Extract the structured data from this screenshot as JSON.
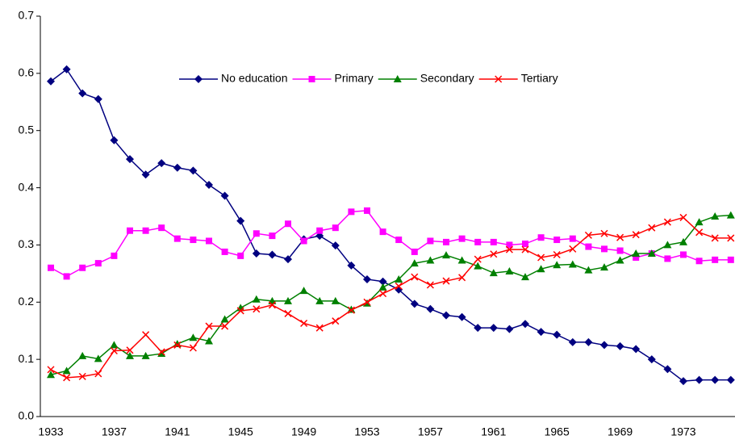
{
  "chart_data": {
    "type": "line",
    "categories": [
      "1933",
      null,
      null,
      null,
      "1937",
      null,
      null,
      null,
      "1941",
      null,
      null,
      null,
      "1945",
      null,
      null,
      null,
      "1949",
      null,
      null,
      null,
      "1953",
      null,
      null,
      null,
      "1957",
      null,
      null,
      null,
      "1961",
      null,
      null,
      null,
      "1965",
      null,
      null,
      null,
      "1969",
      null,
      null,
      null,
      "1973",
      null,
      null,
      null
    ],
    "series": [
      {
        "name": "No education",
        "color": "#000080",
        "marker": "diamond",
        "values": [
          0.586,
          0.607,
          0.565,
          0.555,
          0.483,
          0.45,
          0.423,
          0.443,
          0.435,
          0.43,
          0.405,
          0.386,
          0.342,
          0.285,
          0.283,
          0.275,
          0.31,
          0.316,
          0.299,
          0.264,
          0.24,
          0.236,
          0.222,
          0.197,
          0.188,
          0.177,
          0.174,
          0.155,
          0.155,
          0.153,
          0.162,
          0.148,
          0.143,
          0.13,
          0.13,
          0.125,
          0.123,
          0.118,
          0.1,
          0.083,
          0.062,
          0.064,
          0.064,
          0.064
        ]
      },
      {
        "name": "Primary",
        "color": "#ff00ff",
        "marker": "square",
        "values": [
          0.26,
          0.245,
          0.26,
          0.268,
          0.281,
          0.325,
          0.325,
          0.33,
          0.311,
          0.309,
          0.307,
          0.288,
          0.281,
          0.32,
          0.316,
          0.337,
          0.307,
          0.325,
          0.33,
          0.358,
          0.36,
          0.323,
          0.309,
          0.288,
          0.307,
          0.305,
          0.311,
          0.305,
          0.305,
          0.3,
          0.302,
          0.313,
          0.309,
          0.311,
          0.297,
          0.293,
          0.29,
          0.278,
          0.285,
          0.276,
          0.283,
          0.272,
          0.274,
          0.274
        ]
      },
      {
        "name": "Secondary",
        "color": "#008000",
        "marker": "triangle",
        "values": [
          0.073,
          0.08,
          0.106,
          0.101,
          0.125,
          0.106,
          0.106,
          0.11,
          0.127,
          0.138,
          0.132,
          0.17,
          0.19,
          0.205,
          0.202,
          0.202,
          0.22,
          0.202,
          0.202,
          0.187,
          0.198,
          0.226,
          0.24,
          0.268,
          0.273,
          0.282,
          0.273,
          0.263,
          0.251,
          0.254,
          0.244,
          0.258,
          0.265,
          0.266,
          0.256,
          0.261,
          0.273,
          0.285,
          0.285,
          0.3,
          0.305,
          0.34,
          0.35,
          0.352
        ]
      },
      {
        "name": "Tertiary",
        "color": "#ff0000",
        "marker": "x",
        "values": [
          0.082,
          0.068,
          0.07,
          0.075,
          0.115,
          0.116,
          0.143,
          0.113,
          0.125,
          0.12,
          0.158,
          0.158,
          0.185,
          0.188,
          0.195,
          0.18,
          0.163,
          0.155,
          0.167,
          0.186,
          0.2,
          0.215,
          0.228,
          0.244,
          0.23,
          0.237,
          0.243,
          0.275,
          0.284,
          0.292,
          0.292,
          0.278,
          0.283,
          0.293,
          0.317,
          0.32,
          0.313,
          0.318,
          0.33,
          0.34,
          0.348,
          0.322,
          0.312,
          0.312
        ]
      }
    ],
    "ylim": [
      0,
      0.7
    ],
    "yticks": [
      {
        "value": 0,
        "label": "0.0"
      },
      0.1,
      0.2,
      0.3,
      0.4,
      0.5,
      0.6,
      0.7
    ],
    "grid": false,
    "legend": "top"
  }
}
